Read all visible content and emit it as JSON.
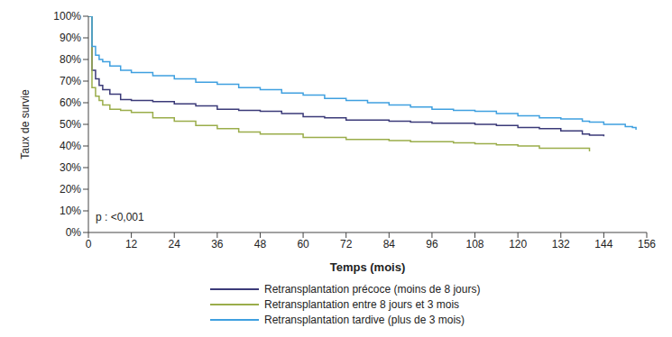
{
  "chart_data": {
    "type": "line",
    "line_style": "step",
    "grid": false,
    "legend": "bottom",
    "x_label": "Temps (mois)",
    "y_label": "Taux de survie",
    "annotations": [
      "p : <0,001"
    ],
    "xlim": [
      0,
      156
    ],
    "xticks": [
      0,
      12,
      24,
      36,
      48,
      60,
      72,
      84,
      96,
      108,
      120,
      132,
      144,
      156
    ],
    "ylim": [
      0,
      100
    ],
    "yticks": [
      {
        "value": 0,
        "label": "0%"
      },
      {
        "value": 10,
        "label": "10%"
      },
      {
        "value": 20,
        "label": "20%"
      },
      {
        "value": 30,
        "label": "30%"
      },
      {
        "value": 40,
        "label": "40%"
      },
      {
        "value": 50,
        "label": "50%"
      },
      {
        "value": 60,
        "label": "60%"
      },
      {
        "value": 70,
        "label": "70%"
      },
      {
        "value": 80,
        "label": "80%"
      },
      {
        "value": 90,
        "label": "90%"
      },
      {
        "value": 100,
        "label": "100%"
      }
    ],
    "x": [
      0,
      1,
      2,
      3,
      4,
      6,
      9,
      12,
      18,
      24,
      30,
      36,
      42,
      48,
      54,
      60,
      66,
      72,
      78,
      84,
      90,
      96,
      102,
      108,
      114,
      120,
      126,
      132,
      138,
      140,
      144,
      150,
      152,
      153
    ],
    "series": [
      {
        "name": "Retransplantation précoce (moins de 8 jours)",
        "color": "#3b3a78",
        "values": [
          100,
          75,
          71,
          68,
          66,
          64,
          61.5,
          61,
          60.5,
          59.5,
          58.5,
          57,
          56.5,
          56,
          55,
          53.5,
          53,
          52,
          52,
          51.5,
          51,
          50.5,
          50.5,
          50,
          49.5,
          48.5,
          48,
          47,
          45.5,
          45,
          44.5,
          null,
          null,
          null
        ]
      },
      {
        "name": "Retransplantation entre 8 jours et 3 mois",
        "color": "#9aad4a",
        "values": [
          100,
          67,
          63,
          61,
          59,
          57,
          56.5,
          55.5,
          53,
          51.5,
          49.5,
          48,
          46.5,
          45.5,
          45.5,
          44,
          44,
          43,
          43,
          42.5,
          42,
          42,
          41.5,
          41,
          40.5,
          40,
          39,
          39,
          39,
          37.5,
          null,
          null,
          null,
          null
        ]
      },
      {
        "name": "Retransplantation tardive (plus de 3 mois)",
        "color": "#3fa0e0",
        "values": [
          100,
          86,
          82,
          80,
          79,
          77,
          75,
          74,
          72.5,
          71,
          69.5,
          68.5,
          67,
          66,
          64.5,
          63.5,
          62,
          61,
          60,
          59,
          58,
          57,
          56.5,
          56,
          55,
          54,
          53,
          52.5,
          51.5,
          51,
          50,
          49,
          48.5,
          47.5
        ]
      }
    ]
  }
}
